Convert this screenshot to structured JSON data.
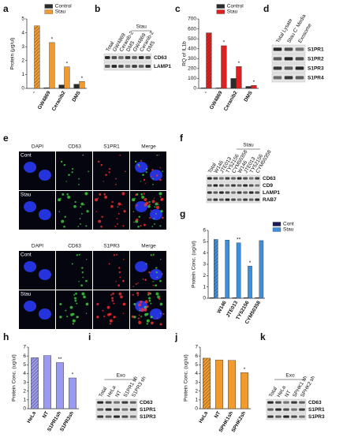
{
  "panel_labels": [
    "a",
    "b",
    "c",
    "d",
    "e",
    "f",
    "g",
    "h",
    "i",
    "j",
    "k"
  ],
  "chart_data": [
    {
      "type": "bar",
      "ylabel": "Protein (μg/ul)",
      "categories": [
        "-",
        "GW4869",
        "Ceranib2",
        "DMS"
      ],
      "series": [
        {
          "name": "Control",
          "color": "#2b2b2b",
          "values": [
            0,
            0.05,
            0.25,
            0.3
          ]
        },
        {
          "name": "Stau",
          "color": "#f39a2d",
          "values": [
            4.5,
            3.3,
            1.55,
            0.5
          ],
          "hatched": [
            true,
            false,
            false,
            false
          ],
          "significance": [
            null,
            "*",
            "*",
            "*"
          ]
        }
      ],
      "ylim": [
        0,
        5
      ],
      "yticks": [
        0,
        1,
        2,
        3,
        4,
        5
      ],
      "legend": "upper center"
    },
    {
      "type": "bar",
      "ylabel": "RQ of IL1b",
      "categories": [
        "-",
        "GW4869",
        "Ceranib2",
        "DMS"
      ],
      "series": [
        {
          "name": "Control",
          "color": "#2b2b2b",
          "values": [
            5,
            5,
            100,
            20
          ]
        },
        {
          "name": "Stau",
          "color": "#e02020",
          "values": [
            560,
            430,
            220,
            30
          ],
          "hatched": [
            true,
            false,
            false,
            false
          ],
          "significance": [
            null,
            "*",
            "*",
            "*"
          ]
        }
      ],
      "ylim": [
        0,
        700
      ],
      "yticks": [
        0,
        100,
        200,
        300,
        400,
        500,
        600,
        700
      ],
      "legend": "upper center"
    },
    {
      "type": "bar",
      "ylabel": "Protein Conc. (ug/ul)",
      "categories": [
        null,
        "W146",
        "JTE013",
        "TY52156",
        "CYM50358"
      ],
      "series": [
        {
          "name": "Cont",
          "color": "#1a1a55",
          "values": [
            0.05,
            0.05,
            0.05,
            0.05,
            0.05
          ]
        },
        {
          "name": "Stau",
          "color": "#3d8fdc",
          "values": [
            5.2,
            5.15,
            4.9,
            2.85,
            5.1
          ],
          "hatched": [
            true,
            false,
            false,
            false,
            false
          ],
          "significance": [
            null,
            null,
            "**",
            "*",
            null
          ]
        }
      ],
      "ylim": [
        0,
        6
      ],
      "yticks": [
        0,
        1,
        2,
        3,
        4,
        5,
        6
      ],
      "legend": "upper right"
    },
    {
      "type": "bar",
      "ylabel": "Protein Conc. (ug/ul)",
      "categories": [
        "HeLa",
        "NT",
        "S1PR1sh",
        "S1PR3sh"
      ],
      "values": [
        5.8,
        6.05,
        5.25,
        3.5
      ],
      "color": "#9a9aee",
      "hatched": [
        true,
        false,
        false,
        false
      ],
      "significance": [
        null,
        null,
        "**",
        "*"
      ],
      "ylim": [
        0,
        7
      ],
      "yticks": [
        0,
        1,
        2,
        3,
        4,
        5,
        6,
        7
      ]
    },
    {
      "type": "bar",
      "ylabel": "Protein Conc. (ug/ul)",
      "categories": [
        "HeLa",
        "NT",
        "SPHK1sh",
        "SPHK2sh"
      ],
      "values": [
        5.75,
        5.55,
        5.5,
        4.1
      ],
      "color": "#f39a2d",
      "hatched": [
        true,
        false,
        false,
        false
      ],
      "significance": [
        null,
        null,
        null,
        "*"
      ],
      "ylim": [
        0,
        7
      ],
      "yticks": [
        0,
        1,
        2,
        3,
        4,
        5,
        6,
        7
      ]
    }
  ],
  "blots": [
    {
      "header": "Stau",
      "lanes": [
        "Total",
        "GW4869",
        "Ceranib-2",
        "DMS",
        "GW4869",
        "Ceranib-2",
        "DMS"
      ],
      "rows": [
        "CD63",
        "LAMP1"
      ]
    },
    {
      "lanes": [
        "Total Lysate",
        "Stau C' Media",
        "Exosome"
      ],
      "rows": [
        "S1PR1",
        "S1PR2",
        "S1PR3",
        "S1PR4"
      ]
    },
    {
      "header": "Stau",
      "lanes": [
        "Total",
        "W146",
        "JTE013",
        "TY52156",
        "CYM50358",
        "W146",
        "JTE013",
        "TY52156",
        "CYM50358"
      ],
      "rows": [
        "CD63",
        "CD9",
        "LAMP1",
        "RAB7"
      ]
    },
    {
      "header": "Exo",
      "lanes": [
        "Total",
        "HeLa",
        "NT",
        "S1PR1 sh",
        "S1PR3 sh"
      ],
      "rows": [
        "CD63",
        "S1PR1",
        "S1PR3"
      ]
    },
    {
      "header": "Exo",
      "lanes": [
        "Total",
        "HeLa",
        "NT",
        "SPHK1 sh",
        "SPHK2 sh"
      ],
      "rows": [
        "CD63",
        "S1PR1",
        "S1PR3"
      ]
    }
  ],
  "imaging": [
    {
      "columns": [
        "DAPI",
        "CD63",
        "S1PR1",
        "Merge"
      ],
      "rows": [
        "Cont",
        "Stau"
      ]
    },
    {
      "columns": [
        "DAPI",
        "CD63",
        "S1PR3",
        "Merge"
      ],
      "rows": [
        "Cont",
        "Stau"
      ]
    }
  ]
}
